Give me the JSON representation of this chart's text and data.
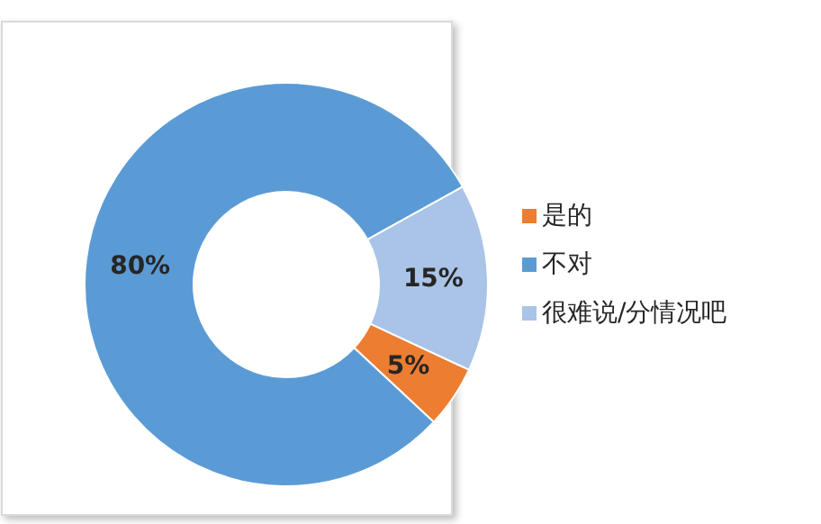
{
  "chart_data": {
    "type": "donut",
    "categories": [
      "是的",
      "不对",
      "很难说/分情况吧"
    ],
    "values": [
      5,
      80,
      15
    ],
    "colors": [
      "#ed7d31",
      "#5b9bd5",
      "#a9c4e6"
    ],
    "value_labels": [
      "5%",
      "80%",
      "15%"
    ],
    "legend": "right"
  }
}
